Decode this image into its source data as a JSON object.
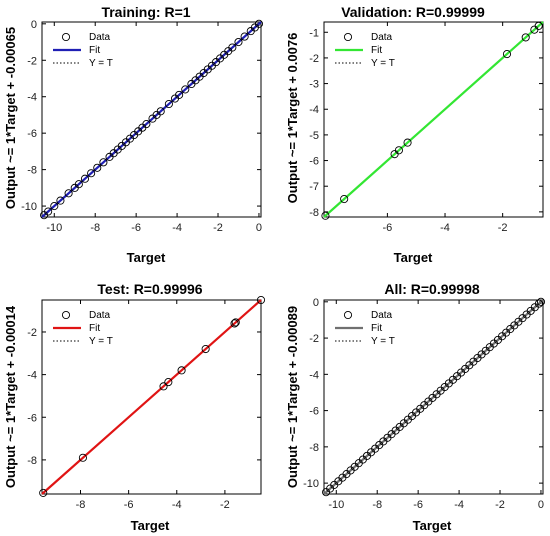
{
  "colors": {
    "training": "#1f1fb4",
    "validation": "#33e633",
    "test": "#e01414",
    "all": "#707070",
    "marker": "#000000",
    "identity": "#000000"
  },
  "chart_data": [
    {
      "type": "scatter",
      "title": "Training: R=1",
      "xlabel": "Target",
      "ylabel": "Output ~= 1*Target + -0.00065",
      "xlim": [
        -10.6,
        0.1
      ],
      "ylim": [
        -10.6,
        0.1
      ],
      "xticks": [
        -10,
        -8,
        -6,
        -4,
        -2,
        0
      ],
      "yticks": [
        -10,
        -8,
        -6,
        -4,
        -2,
        0
      ],
      "fit_color": "#1f1fb4",
      "legend": [
        "Data",
        "Fit",
        "Y = T"
      ],
      "legend_position": "top-left",
      "x": [
        -10.5,
        -10.3,
        -10.0,
        -9.7,
        -9.3,
        -9.0,
        -8.8,
        -8.5,
        -8.2,
        -7.9,
        -7.6,
        -7.3,
        -7.1,
        -6.9,
        -6.7,
        -6.5,
        -6.3,
        -6.1,
        -5.9,
        -5.7,
        -5.5,
        -5.2,
        -5.0,
        -4.8,
        -4.4,
        -4.1,
        -3.9,
        -3.6,
        -3.3,
        -3.1,
        -2.9,
        -2.7,
        -2.5,
        -2.3,
        -2.1,
        -1.9,
        -1.7,
        -1.5,
        -1.3,
        -1.0,
        -0.7,
        -0.4,
        -0.2,
        0.0
      ],
      "y": [
        -10.5,
        -10.3,
        -10.0,
        -9.7,
        -9.3,
        -9.0,
        -8.8,
        -8.5,
        -8.2,
        -7.9,
        -7.6,
        -7.3,
        -7.1,
        -6.9,
        -6.7,
        -6.5,
        -6.3,
        -6.1,
        -5.9,
        -5.7,
        -5.5,
        -5.2,
        -5.0,
        -4.8,
        -4.4,
        -4.1,
        -3.9,
        -3.6,
        -3.3,
        -3.1,
        -2.9,
        -2.7,
        -2.5,
        -2.3,
        -2.1,
        -1.9,
        -1.7,
        -1.5,
        -1.3,
        -1.0,
        -0.7,
        -0.4,
        -0.2,
        0.0
      ]
    },
    {
      "type": "scatter",
      "title": "Validation: R=0.99999",
      "xlabel": "Target",
      "ylabel": "Output ~= 1*Target + 0.0076",
      "xlim": [
        -8.2,
        -0.6
      ],
      "ylim": [
        -8.2,
        -0.6
      ],
      "xticks": [
        -6,
        -4,
        -2
      ],
      "yticks": [
        -8,
        -7,
        -6,
        -5,
        -4,
        -3,
        -2,
        -1
      ],
      "fit_color": "#33e633",
      "legend": [
        "Data",
        "Fit",
        "Y = T"
      ],
      "legend_position": "top-left",
      "x": [
        -8.15,
        -7.5,
        -5.75,
        -5.6,
        -5.3,
        -1.85,
        -1.2,
        -0.9,
        -0.75
      ],
      "y": [
        -8.15,
        -7.5,
        -5.75,
        -5.6,
        -5.3,
        -1.85,
        -1.2,
        -0.9,
        -0.75
      ]
    },
    {
      "type": "scatter",
      "title": "Test: R=0.99996",
      "xlabel": "Target",
      "ylabel": "Output ~= 1*Target + -0.00014",
      "xlim": [
        -9.6,
        -0.5
      ],
      "ylim": [
        -9.6,
        -0.5
      ],
      "xticks": [
        -8,
        -6,
        -4,
        -2
      ],
      "yticks": [
        -8,
        -6,
        -4,
        -2
      ],
      "fit_color": "#e01414",
      "legend": [
        "Data",
        "Fit",
        "Y = T"
      ],
      "legend_position": "top-left",
      "x": [
        -9.55,
        -7.9,
        -4.55,
        -4.35,
        -3.8,
        -2.8,
        -1.6,
        -1.55,
        -0.5
      ],
      "y": [
        -9.55,
        -7.9,
        -4.55,
        -4.35,
        -3.8,
        -2.8,
        -1.6,
        -1.55,
        -0.5
      ]
    },
    {
      "type": "scatter",
      "title": "All: R=0.99998",
      "xlabel": "Target",
      "ylabel": "Output ~= 1*Target + -0.00089",
      "xlim": [
        -10.6,
        0.1
      ],
      "ylim": [
        -10.6,
        0.1
      ],
      "xticks": [
        -10,
        -8,
        -6,
        -4,
        -2,
        0
      ],
      "yticks": [
        -10,
        -8,
        -6,
        -4,
        -2,
        0
      ],
      "fit_color": "#707070",
      "legend": [
        "Data",
        "Fit",
        "Y = T"
      ],
      "legend_position": "top-left",
      "x": [
        -10.5,
        -10.3,
        -10.1,
        -9.9,
        -9.7,
        -9.5,
        -9.3,
        -9.1,
        -8.9,
        -8.7,
        -8.5,
        -8.3,
        -8.1,
        -7.9,
        -7.7,
        -7.5,
        -7.3,
        -7.1,
        -6.9,
        -6.7,
        -6.5,
        -6.3,
        -6.1,
        -5.9,
        -5.7,
        -5.5,
        -5.3,
        -5.1,
        -4.9,
        -4.7,
        -4.5,
        -4.3,
        -4.1,
        -3.9,
        -3.7,
        -3.5,
        -3.3,
        -3.1,
        -2.9,
        -2.7,
        -2.5,
        -2.3,
        -2.1,
        -1.9,
        -1.7,
        -1.5,
        -1.3,
        -1.1,
        -0.9,
        -0.7,
        -0.5,
        -0.3,
        -0.1,
        0.0
      ],
      "y": [
        -10.5,
        -10.3,
        -10.1,
        -9.9,
        -9.7,
        -9.5,
        -9.3,
        -9.1,
        -8.9,
        -8.7,
        -8.5,
        -8.3,
        -8.1,
        -7.9,
        -7.7,
        -7.5,
        -7.3,
        -7.1,
        -6.9,
        -6.7,
        -6.5,
        -6.3,
        -6.1,
        -5.9,
        -5.7,
        -5.5,
        -5.3,
        -5.1,
        -4.9,
        -4.7,
        -4.5,
        -4.3,
        -4.1,
        -3.9,
        -3.7,
        -3.5,
        -3.3,
        -3.1,
        -2.9,
        -2.7,
        -2.5,
        -2.3,
        -2.1,
        -1.9,
        -1.7,
        -1.5,
        -1.3,
        -1.1,
        -0.9,
        -0.7,
        -0.5,
        -0.3,
        -0.1,
        0.0
      ]
    }
  ]
}
